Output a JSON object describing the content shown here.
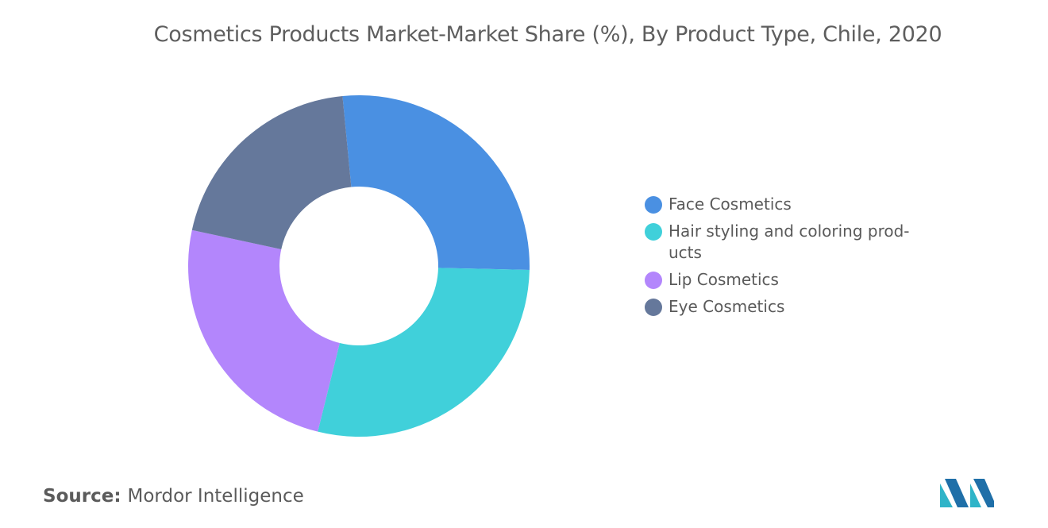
{
  "title": "Cosmetics Products Market-Market Share (%), By Product Type, Chile, 2020",
  "source": {
    "label": "Source:",
    "text": "Mordor Intelligence"
  },
  "logo": {
    "icon": "mordor-intelligence-logo-icon"
  },
  "chart_data": {
    "type": "pie",
    "style": "donut",
    "title": "Cosmetics Products Market-Market Share (%), By Product Type, Chile, 2020",
    "categories": [
      "Face Cosmetics",
      "Hair styling and coloring products",
      "Lip Cosmetics",
      "Eye Cosmetics"
    ],
    "values": [
      26.9,
      28.5,
      24.5,
      20.1
    ],
    "colors": [
      "#4a90e2",
      "#40d0da",
      "#b386fc",
      "#65789b"
    ],
    "start_angle_deg": -5.5,
    "legend": "right"
  },
  "legend": {
    "items": [
      {
        "label": "Face Cosmetics",
        "color": "#4a90e2"
      },
      {
        "label": "Hair styling and coloring prod-ucts",
        "color": "#40d0da"
      },
      {
        "label": "Lip Cosmetics",
        "color": "#b386fc"
      },
      {
        "label": "Eye Cosmetics",
        "color": "#65789b"
      }
    ]
  }
}
